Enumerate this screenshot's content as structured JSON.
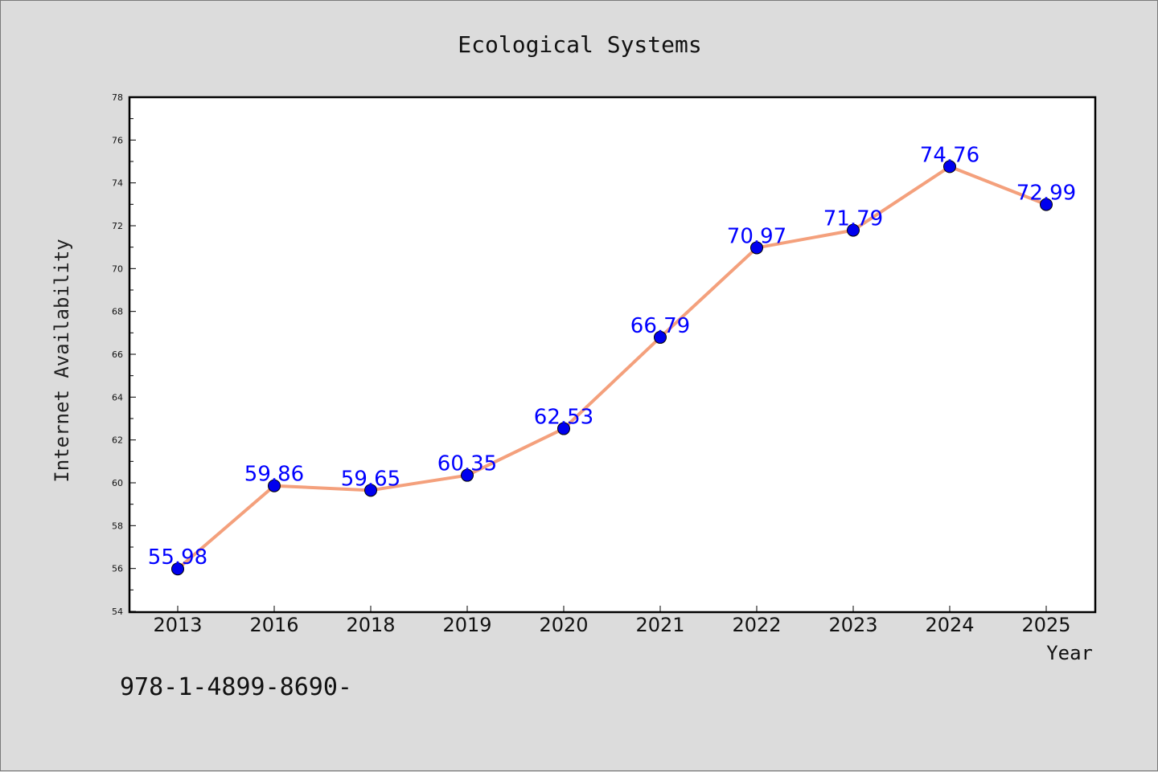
{
  "chart_data": {
    "type": "line",
    "title": "Ecological Systems",
    "xlabel": "Year",
    "ylabel": "Internet Availability",
    "categories": [
      "2013",
      "2016",
      "2018",
      "2019",
      "2020",
      "2021",
      "2022",
      "2023",
      "2024",
      "2025"
    ],
    "series": [
      {
        "values": [
          55.98,
          59.86,
          59.65,
          60.35,
          62.53,
          66.79,
          70.97,
          71.79,
          74.76,
          72.99
        ],
        "line_color": "#f4a07c",
        "marker_color": "#0000ee"
      }
    ],
    "ylim": [
      54,
      78
    ],
    "yticks": [
      54,
      56,
      58,
      60,
      62,
      64,
      66,
      68,
      70,
      72,
      74,
      76,
      78
    ],
    "data_labels": [
      "55.98",
      "59.86",
      "59.65",
      "60.35",
      "62.53",
      "66.79",
      "70.97",
      "71.79",
      "74.76",
      "72.99"
    ],
    "data_label_color": "#0000ff",
    "grid": false,
    "legend": "none"
  },
  "annotation": {
    "text": "978-1-4899-8690-"
  }
}
